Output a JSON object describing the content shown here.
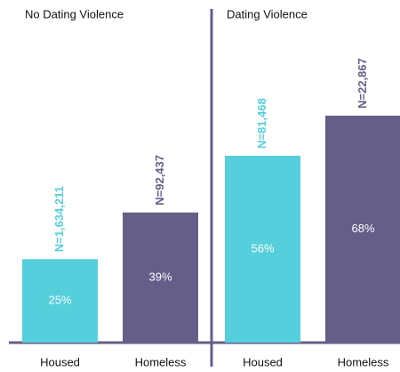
{
  "chart_data": [
    {
      "type": "bar",
      "title": "No Dating Violence",
      "categories": [
        "Housed",
        "Homeless"
      ],
      "values": [
        25,
        39
      ],
      "value_labels": [
        "25%",
        "39%"
      ],
      "annotations": [
        "N=1,634,211",
        "N=92,437"
      ],
      "colors": [
        "#56cfdc",
        "#655e88"
      ],
      "ylim": [
        0,
        100
      ]
    },
    {
      "type": "bar",
      "title": "Dating Violence",
      "categories": [
        "Housed",
        "Homeless"
      ],
      "values": [
        56,
        68
      ],
      "value_labels": [
        "56%",
        "68%"
      ],
      "annotations": [
        "N=81,468",
        "N=22,867"
      ],
      "colors": [
        "#56cfdc",
        "#655e88"
      ],
      "ylim": [
        0,
        100
      ]
    }
  ]
}
